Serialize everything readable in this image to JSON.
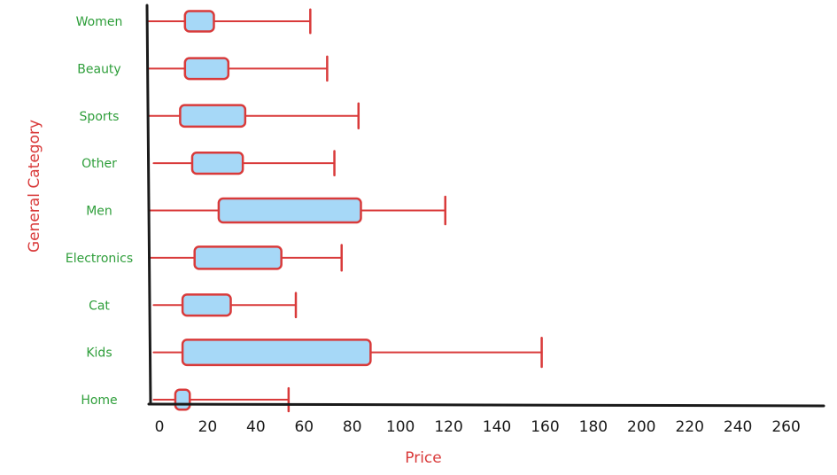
{
  "chart_data": {
    "type": "boxplot",
    "orientation": "horizontal",
    "title": "",
    "xlabel": "Price",
    "ylabel": "General Category",
    "xlim": [
      0,
      280
    ],
    "xticks": [
      0,
      20,
      40,
      60,
      80,
      100,
      120,
      140,
      160,
      180,
      200,
      220,
      240,
      260
    ],
    "xtick_labels": [
      "0",
      "20",
      "40",
      "60",
      "80",
      "100",
      "120",
      "140",
      "160",
      "180",
      "200",
      "220",
      "240",
      "260"
    ],
    "grid": false,
    "categories": [
      "Women",
      "Beauty",
      "Sports",
      "Other",
      "Men",
      "Electronics",
      "Cat",
      "Kids",
      "Home"
    ],
    "boxes": [
      {
        "category": "Women",
        "whisker_low": 0,
        "q1": 15,
        "q3": 27,
        "whisker_high": 67
      },
      {
        "category": "Beauty",
        "whisker_low": 0,
        "q1": 15,
        "q3": 33,
        "whisker_high": 74
      },
      {
        "category": "Sports",
        "whisker_low": 0,
        "q1": 13,
        "q3": 40,
        "whisker_high": 87
      },
      {
        "category": "Other",
        "whisker_low": 2,
        "q1": 18,
        "q3": 39,
        "whisker_high": 77
      },
      {
        "category": "Men",
        "whisker_low": 0,
        "q1": 29,
        "q3": 88,
        "whisker_high": 123
      },
      {
        "category": "Electronics",
        "whisker_low": 0,
        "q1": 19,
        "q3": 55,
        "whisker_high": 80
      },
      {
        "category": "Cat",
        "whisker_low": 2,
        "q1": 14,
        "q3": 34,
        "whisker_high": 61
      },
      {
        "category": "Kids",
        "whisker_low": 2,
        "q1": 14,
        "q3": 92,
        "whisker_high": 163
      },
      {
        "category": "Home",
        "whisker_low": 2,
        "q1": 11,
        "q3": 17,
        "whisker_high": 58
      }
    ],
    "colors": {
      "box_fill": "#a6d8f7",
      "stroke": "#d93a3a",
      "axis": "#1a1a1a",
      "category_label": "#2e9e3a",
      "axis_title": "#d93a3a"
    }
  }
}
